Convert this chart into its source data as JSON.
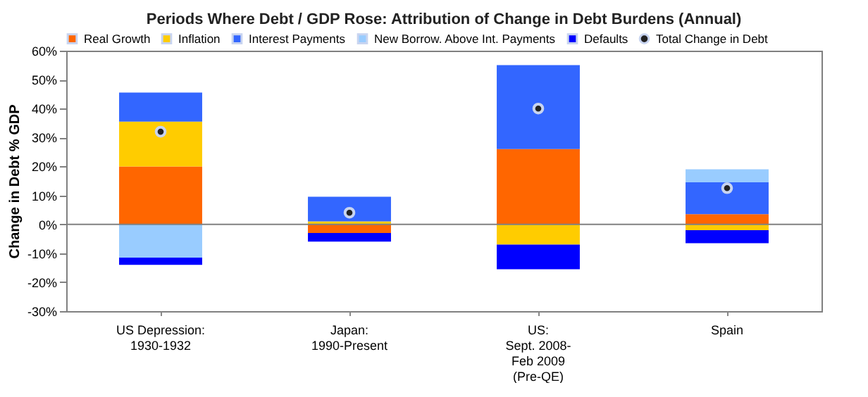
{
  "chart_data": {
    "type": "bar",
    "title": "Periods Where Debt / GDP Rose:  Attribution of Change in Debt Burdens (Annual)",
    "ylabel": "Change in Debt % GDP",
    "categories": [
      "US Depression:\n1930-1932",
      "Japan:\n1990-Present",
      "US:\nSept. 2008-\nFeb 2009\n(Pre-QE)",
      "Spain"
    ],
    "stacked": true,
    "series": [
      {
        "name": "Real Growth",
        "color": "#ff6600",
        "values": [
          20,
          -3,
          26,
          3.5
        ]
      },
      {
        "name": "Inflation",
        "color": "#ffcc00",
        "values": [
          15.5,
          1,
          -7,
          -2
        ]
      },
      {
        "name": "Interest Payments",
        "color": "#3366ff",
        "values": [
          10,
          8.5,
          29,
          11
        ]
      },
      {
        "name": "New Borrow. Above Int. Payments",
        "color": "#99ccff",
        "values": [
          -11.5,
          0,
          0,
          4.5
        ]
      },
      {
        "name": "Defaults",
        "color": "#0000ff",
        "values": [
          -2.5,
          -3,
          -8.5,
          -4.5
        ]
      },
      {
        "name": "Total Change in Debt",
        "type": "scatter",
        "marker": "circle",
        "color": "#222222",
        "values": [
          32,
          4,
          40,
          12.5
        ]
      }
    ],
    "ylim": [
      -30,
      60
    ],
    "yticks": [
      {
        "value": -30,
        "label": "-30%"
      },
      {
        "value": -20,
        "label": "-20%"
      },
      {
        "value": -10,
        "label": "-10%"
      },
      {
        "value": 0,
        "label": "0%"
      },
      {
        "value": 10,
        "label": "10%"
      },
      {
        "value": 20,
        "label": "20%"
      },
      {
        "value": 30,
        "label": "30%"
      },
      {
        "value": 40,
        "label": "40%"
      },
      {
        "value": 50,
        "label": "50%"
      },
      {
        "value": 60,
        "label": "60%"
      }
    ],
    "ref_lines": [
      {
        "axis": "y",
        "value": 0,
        "color": "#808080"
      }
    ],
    "grid": false,
    "legend": "top"
  }
}
